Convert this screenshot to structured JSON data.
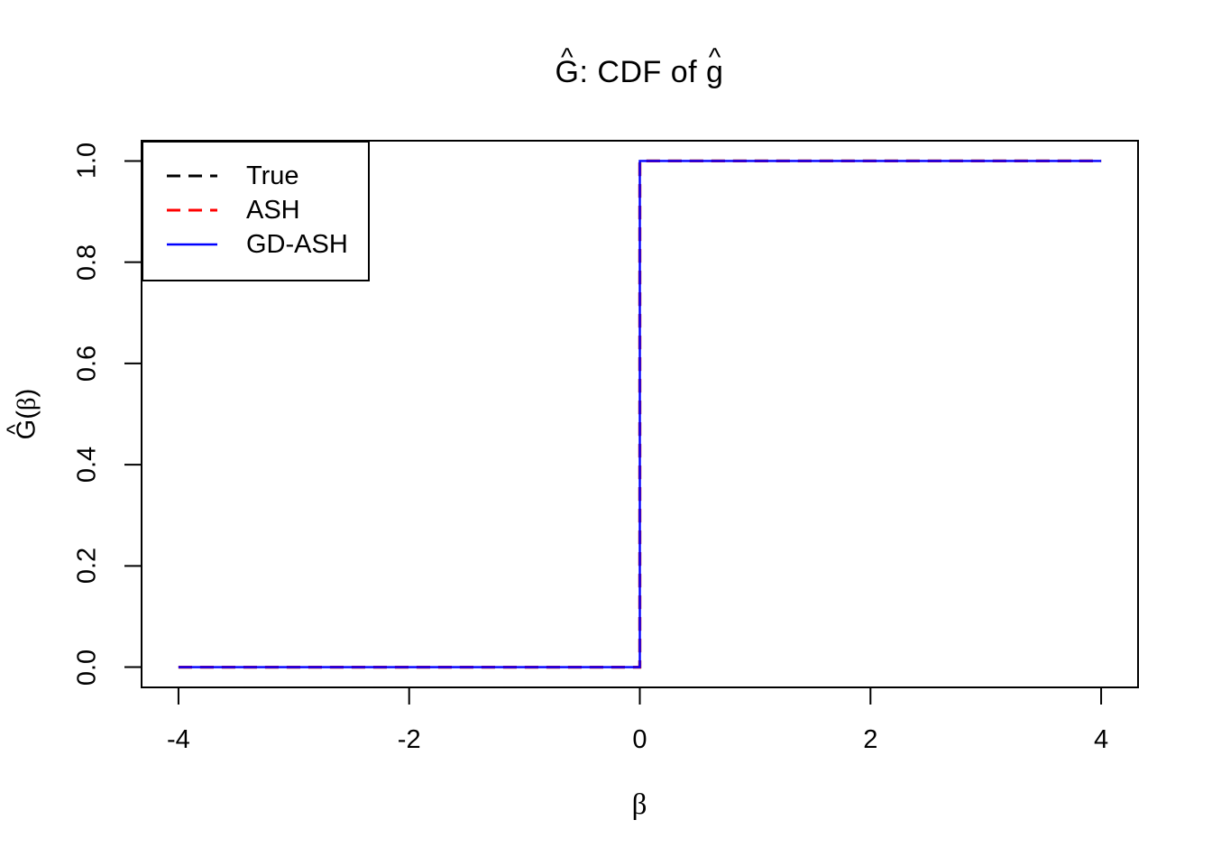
{
  "figure": {
    "background": "#ffffff"
  },
  "chart_data": {
    "type": "line",
    "title": "Ĝ: CDF of ĝ",
    "title_parts": [
      {
        "base": "G",
        "hat": "^"
      },
      {
        "base": ": CDF of ",
        "hat": ""
      },
      {
        "base": "g",
        "hat": "^"
      }
    ],
    "xlabel": "β",
    "ylabel": "Ĝ(β)",
    "ylabel_parts": [
      {
        "base": "G",
        "hat": "^"
      },
      {
        "base": "(",
        "hat": ""
      },
      {
        "base": "β",
        "hat": "",
        "greek": true
      },
      {
        "base": ")",
        "hat": ""
      }
    ],
    "xlim": [
      -4.32,
      4.32
    ],
    "ylim": [
      -0.04,
      1.04
    ],
    "xticks": [
      -4,
      -2,
      0,
      2,
      4
    ],
    "xtick_labels": [
      "-4",
      "-2",
      "0",
      "2",
      "4"
    ],
    "yticks": [
      0,
      0.2,
      0.4,
      0.6,
      0.8,
      1
    ],
    "ytick_labels": [
      "0.0",
      "0.2",
      "0.4",
      "0.6",
      "0.8",
      "1.0"
    ],
    "grid": false,
    "box": true,
    "axis_color": "#000000",
    "legend": {
      "position": "topleft"
    },
    "series": [
      {
        "name": "True",
        "color": "#000000",
        "style": "dashed",
        "x": [
          -4,
          0,
          0,
          4
        ],
        "y": [
          0,
          0,
          1,
          1
        ]
      },
      {
        "name": "ASH",
        "color": "#FF0000",
        "style": "dashed",
        "x": [
          -4,
          0,
          0,
          4
        ],
        "y": [
          0,
          0,
          1,
          1
        ]
      },
      {
        "name": "GD-ASH",
        "color": "#0000FF",
        "style": "solid",
        "x": [
          -4,
          0,
          0,
          4
        ],
        "y": [
          0,
          0,
          1,
          1
        ]
      }
    ]
  }
}
